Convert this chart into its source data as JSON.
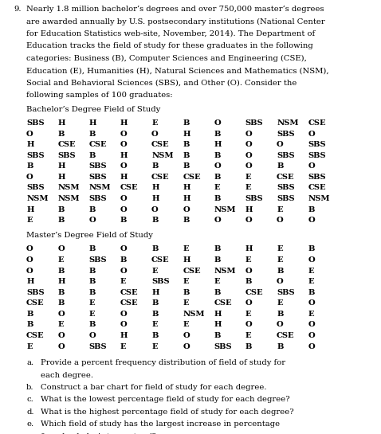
{
  "fig_width": 4.78,
  "fig_height": 5.45,
  "dpi": 100,
  "bg_color": "white",
  "text_color": "black",
  "font_family": "DejaVu Serif",
  "font_size": 7.2,
  "problem_number": "9.",
  "intro_text": "Nearly 1.8 million bachelor’s degrees and over 750,000 master’s degrees are awarded annually by U.S. postsecondary institutions (National Center for Education Statistics web-site, November, 2014). The Department of Education tracks the field of study for these graduates in the following categories: Business (B), Computer Sciences and Engineering (CSE), Education (E), Humanities (H), Natural Sciences and Mathematics (NSM), Social and Behavioral Sciences (SBS), and Other (O). Consider the following samples of 100 graduates:",
  "bachelor_header": "Bachelor’s Degree Field of Study",
  "bachelor_data": [
    [
      "SBS",
      "H",
      "H",
      "H",
      "E",
      "B",
      "O",
      "SBS",
      "NSM",
      "CSE"
    ],
    [
      "O",
      "B",
      "B",
      "O",
      "O",
      "H",
      "B",
      "O",
      "SBS",
      "O"
    ],
    [
      "H",
      "CSE",
      "CSE",
      "O",
      "CSE",
      "B",
      "H",
      "O",
      "O",
      "SBS"
    ],
    [
      "SBS",
      "SBS",
      "B",
      "H",
      "NSM",
      "B",
      "B",
      "O",
      "SBS",
      "SBS"
    ],
    [
      "B",
      "H",
      "SBS",
      "O",
      "B",
      "B",
      "O",
      "O",
      "B",
      "O"
    ],
    [
      "O",
      "H",
      "SBS",
      "H",
      "CSE",
      "CSE",
      "B",
      "E",
      "CSE",
      "SBS"
    ],
    [
      "SBS",
      "NSM",
      "NSM",
      "CSE",
      "H",
      "H",
      "E",
      "E",
      "SBS",
      "CSE"
    ],
    [
      "NSM",
      "NSM",
      "SBS",
      "O",
      "H",
      "H",
      "B",
      "SBS",
      "SBS",
      "NSM"
    ],
    [
      "H",
      "B",
      "B",
      "O",
      "O",
      "O",
      "NSM",
      "H",
      "E",
      "B"
    ],
    [
      "E",
      "B",
      "O",
      "B",
      "B",
      "B",
      "O",
      "O",
      "O",
      "O"
    ]
  ],
  "master_header": "Master’s Degree Field of Study",
  "master_data": [
    [
      "O",
      "O",
      "B",
      "O",
      "B",
      "E",
      "B",
      "H",
      "E",
      "B"
    ],
    [
      "O",
      "E",
      "SBS",
      "B",
      "CSE",
      "H",
      "B",
      "E",
      "E",
      "O"
    ],
    [
      "O",
      "B",
      "B",
      "O",
      "E",
      "CSE",
      "NSM",
      "O",
      "B",
      "E"
    ],
    [
      "H",
      "H",
      "B",
      "E",
      "SBS",
      "E",
      "E",
      "B",
      "O",
      "E"
    ],
    [
      "SBS",
      "B",
      "B",
      "CSE",
      "H",
      "B",
      "B",
      "CSE",
      "SBS",
      "B"
    ],
    [
      "CSE",
      "B",
      "E",
      "CSE",
      "B",
      "E",
      "CSE",
      "O",
      "E",
      "O"
    ],
    [
      "B",
      "O",
      "E",
      "O",
      "B",
      "NSM",
      "H",
      "E",
      "B",
      "E"
    ],
    [
      "B",
      "E",
      "B",
      "O",
      "E",
      "E",
      "H",
      "O",
      "O",
      "O"
    ],
    [
      "CSE",
      "O",
      "O",
      "H",
      "B",
      "O",
      "B",
      "E",
      "CSE",
      "O"
    ],
    [
      "E",
      "O",
      "SBS",
      "E",
      "E",
      "O",
      "SBS",
      "B",
      "B",
      "O"
    ]
  ],
  "questions": [
    "a.\tProvide a percent frequency distribution of field of study for each degree.",
    "b.\tConstruct a bar chart for field of study for each degree.",
    "c.\tWhat is the lowest percentage field of study for each degree?",
    "d.\tWhat is the highest percentage field of study for each degree?",
    "e.\tWhich field of study has the largest increase in percentage from bachelor’s to masters’?"
  ]
}
